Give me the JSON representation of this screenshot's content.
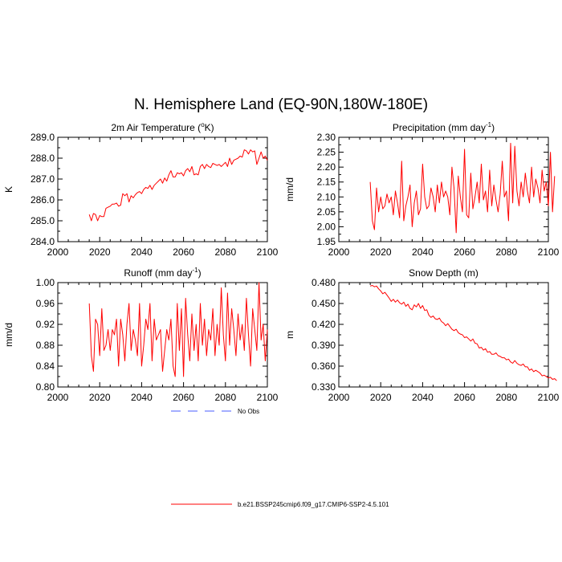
{
  "figure": {
    "title": "N. Hemisphere Land (EQ-90N,180W-180E)",
    "background": "#ffffff"
  },
  "legend": {
    "items": [
      {
        "label": "No Obs",
        "color": "#4a5cff",
        "dash": "dashed"
      },
      {
        "label": "b.e21.BSSP245cmip6.f09_g17.CMIP6-SSP2-4.5.101",
        "color": "#ff0000",
        "dash": "solid"
      }
    ]
  },
  "chart_data": [
    {
      "type": "line",
      "title": "2m Air Temperature (°K)",
      "title_main": "2m Air Temperature (",
      "title_sup": "o",
      "title_end": "K)",
      "xlabel": "",
      "ylabel": "K",
      "xlim": [
        2000,
        2100
      ],
      "ylim": [
        284.0,
        289.0
      ],
      "xticks": [
        "2000",
        "2020",
        "2040",
        "2060",
        "2080",
        "2100"
      ],
      "yticks": [
        "284.0",
        "285.0",
        "286.0",
        "287.0",
        "288.0",
        "289.0"
      ],
      "series": [
        {
          "name": "b.e21.BSSP245cmip6.f09_g17.CMIP6-SSP2-4.5.101",
          "color": "#ff0000",
          "x_start": 2015,
          "values": [
            285.3,
            285.0,
            285.35,
            285.3,
            285.0,
            285.25,
            285.2,
            285.2,
            285.6,
            285.65,
            285.7,
            285.8,
            285.8,
            285.85,
            285.7,
            285.75,
            286.3,
            286.2,
            286.3,
            285.9,
            286.2,
            286.1,
            286.25,
            286.35,
            286.4,
            286.3,
            286.5,
            286.6,
            286.55,
            286.7,
            286.5,
            286.7,
            286.8,
            286.9,
            287.0,
            286.8,
            287.05,
            286.9,
            287.2,
            287.4,
            287.1,
            287.1,
            287.3,
            287.25,
            287.3,
            287.15,
            287.4,
            287.5,
            287.35,
            287.6,
            287.2,
            287.25,
            287.2,
            287.6,
            287.7,
            287.5,
            287.7,
            287.6,
            287.55,
            287.75,
            287.7,
            287.65,
            287.7,
            287.6,
            287.7,
            287.8,
            287.6,
            288.0,
            287.7,
            287.9,
            287.95,
            288.0,
            288.1,
            288.05,
            288.4,
            288.35,
            288.2,
            288.4,
            288.3,
            288.35,
            287.7,
            288.0,
            288.3,
            288.0,
            288.1,
            287.9
          ]
        }
      ]
    },
    {
      "type": "line",
      "title": "Precipitation (mm day⁻¹)",
      "title_main": "Precipitation (mm day",
      "title_sup": "-1",
      "title_end": ")",
      "xlabel": "",
      "ylabel": "mm/d",
      "xlim": [
        2000,
        2100
      ],
      "ylim": [
        1.95,
        2.3
      ],
      "xticks": [
        "2000",
        "2020",
        "2040",
        "2060",
        "2080",
        "2100"
      ],
      "yticks": [
        "1.95",
        "2.00",
        "2.05",
        "2.10",
        "2.15",
        "2.20",
        "2.25",
        "2.30"
      ],
      "series": [
        {
          "name": "b.e21.BSSP245cmip6.f09_g17.CMIP6-SSP2-4.5.101",
          "color": "#ff0000",
          "x_start": 2015,
          "values": [
            2.15,
            2.02,
            1.99,
            2.13,
            2.05,
            2.1,
            2.06,
            2.07,
            2.11,
            2.08,
            2.1,
            2.04,
            2.12,
            2.08,
            2.03,
            2.22,
            2.02,
            2.07,
            2.1,
            2.14,
            2.0,
            2.08,
            2.12,
            2.04,
            2.06,
            2.21,
            2.1,
            2.06,
            2.07,
            2.13,
            2.1,
            2.05,
            2.14,
            2.08,
            2.15,
            2.1,
            2.12,
            2.1,
            2.04,
            2.2,
            2.13,
            1.98,
            2.17,
            2.1,
            2.05,
            2.26,
            2.04,
            2.03,
            2.18,
            2.06,
            2.1,
            2.15,
            2.08,
            2.21,
            2.09,
            2.12,
            2.05,
            2.19,
            2.07,
            2.14,
            2.09,
            2.05,
            2.11,
            2.22,
            2.1,
            2.12,
            2.02,
            2.28,
            2.08,
            2.27,
            2.12,
            2.07,
            2.15,
            2.1,
            2.18,
            2.12,
            2.08,
            2.2,
            2.1,
            2.16,
            2.13,
            2.08,
            2.19,
            2.12,
            2.15,
            2.07,
            2.25,
            2.05,
            2.17
          ]
        }
      ]
    },
    {
      "type": "line",
      "title": "Runoff (mm day⁻¹)",
      "title_main": "Runoff (mm day",
      "title_sup": "-1",
      "title_end": ")",
      "xlabel": "",
      "ylabel": "mm/d",
      "xlim": [
        2000,
        2100
      ],
      "ylim": [
        0.8,
        1.0
      ],
      "xticks": [
        "2000",
        "2020",
        "2040",
        "2060",
        "2080",
        "2100"
      ],
      "yticks": [
        "0.80",
        "0.84",
        "0.88",
        "0.92",
        "0.96",
        "1.00"
      ],
      "series": [
        {
          "name": "b.e21.BSSP245cmip6.f09_g17.CMIP6-SSP2-4.5.101",
          "color": "#ff0000",
          "x_start": 2015,
          "values": [
            0.96,
            0.86,
            0.83,
            0.93,
            0.92,
            0.86,
            0.95,
            0.87,
            0.88,
            0.91,
            0.87,
            0.91,
            0.9,
            0.93,
            0.84,
            0.93,
            0.9,
            0.85,
            0.92,
            0.96,
            0.87,
            0.91,
            0.89,
            0.86,
            0.96,
            0.84,
            0.88,
            0.93,
            0.91,
            0.96,
            0.85,
            0.93,
            0.89,
            0.9,
            0.91,
            0.83,
            0.87,
            0.91,
            0.89,
            0.93,
            0.84,
            0.82,
            0.96,
            0.87,
            0.95,
            0.82,
            0.97,
            0.9,
            0.85,
            0.94,
            0.87,
            0.92,
            0.85,
            0.96,
            0.88,
            0.93,
            0.86,
            0.91,
            0.89,
            0.95,
            0.86,
            0.92,
            0.88,
            0.99,
            0.9,
            0.85,
            0.98,
            0.88,
            0.95,
            0.91,
            0.86,
            0.94,
            0.89,
            0.92,
            0.87,
            0.97,
            0.9,
            0.84,
            0.95,
            0.91,
            0.87,
            1.0,
            0.89,
            0.92,
            0.85,
            0.91
          ]
        }
      ]
    },
    {
      "type": "line",
      "title": "Snow Depth (m)",
      "title_main": "Snow Depth (m)",
      "title_sup": "",
      "title_end": "",
      "xlabel": "",
      "ylabel": "m",
      "xlim": [
        2000,
        2100
      ],
      "ylim": [
        0.33,
        0.48
      ],
      "xticks": [
        "2000",
        "2020",
        "2040",
        "2060",
        "2080",
        "2100"
      ],
      "yticks": [
        "0.330",
        "0.360",
        "0.390",
        "0.420",
        "0.450",
        "0.480"
      ],
      "series": [
        {
          "name": "b.e21.BSSP245cmip6.f09_g17.CMIP6-SSP2-4.5.101",
          "color": "#ff0000",
          "x_start": 2015,
          "values": [
            0.475,
            0.476,
            0.474,
            0.475,
            0.471,
            0.468,
            0.464,
            0.466,
            0.462,
            0.458,
            0.453,
            0.456,
            0.452,
            0.455,
            0.451,
            0.449,
            0.452,
            0.446,
            0.449,
            0.443,
            0.441,
            0.448,
            0.445,
            0.45,
            0.443,
            0.447,
            0.44,
            0.441,
            0.433,
            0.43,
            0.432,
            0.428,
            0.427,
            0.429,
            0.424,
            0.422,
            0.418,
            0.421,
            0.417,
            0.413,
            0.411,
            0.413,
            0.408,
            0.406,
            0.405,
            0.401,
            0.402,
            0.399,
            0.396,
            0.399,
            0.393,
            0.392,
            0.386,
            0.387,
            0.383,
            0.385,
            0.38,
            0.381,
            0.377,
            0.377,
            0.379,
            0.375,
            0.374,
            0.372,
            0.372,
            0.369,
            0.37,
            0.366,
            0.364,
            0.368,
            0.364,
            0.362,
            0.361,
            0.363,
            0.359,
            0.359,
            0.354,
            0.356,
            0.352,
            0.354,
            0.352,
            0.35,
            0.346,
            0.347,
            0.345,
            0.343,
            0.344,
            0.341,
            0.342,
            0.339
          ]
        }
      ]
    }
  ]
}
